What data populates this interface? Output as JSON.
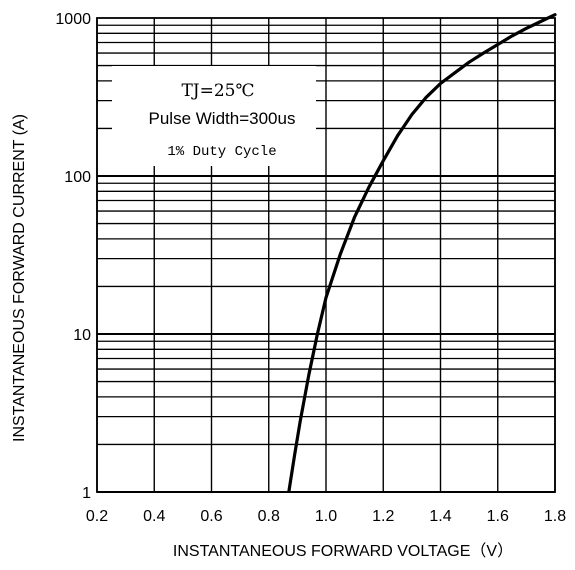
{
  "chart_data": {
    "type": "line",
    "title": "",
    "xlabel": "INSTANTANEOUS FORWARD VOLTAGE（V）",
    "ylabel": "INSTANTANEOUS FORWARD CURRENT (A)",
    "x_scale": "linear",
    "y_scale": "log",
    "xlim": [
      0.2,
      1.8
    ],
    "ylim": [
      1,
      1000
    ],
    "x_ticks": [
      "0.2",
      "0.4",
      "0.6",
      "0.8",
      "1.0",
      "1.2",
      "1.4",
      "1.6",
      "1.8"
    ],
    "y_ticks": [
      "1",
      "10",
      "100",
      "1000"
    ],
    "grid": true,
    "annotations": [
      "TJ=25℃",
      "Pulse Width=300us",
      "1% Duty Cycle"
    ],
    "series": [
      {
        "name": "",
        "color": "#000000",
        "x": [
          0.87,
          0.89,
          0.91,
          0.94,
          0.97,
          1.0,
          1.05,
          1.1,
          1.15,
          1.2,
          1.25,
          1.3,
          1.35,
          1.4,
          1.45,
          1.5,
          1.55,
          1.6,
          1.65,
          1.7,
          1.75,
          1.8
        ],
        "y": [
          1.0,
          1.7,
          2.8,
          5.5,
          10,
          17,
          32,
          55,
          85,
          125,
          180,
          245,
          315,
          385,
          450,
          525,
          600,
          680,
          770,
          860,
          950,
          1050
        ]
      }
    ]
  }
}
